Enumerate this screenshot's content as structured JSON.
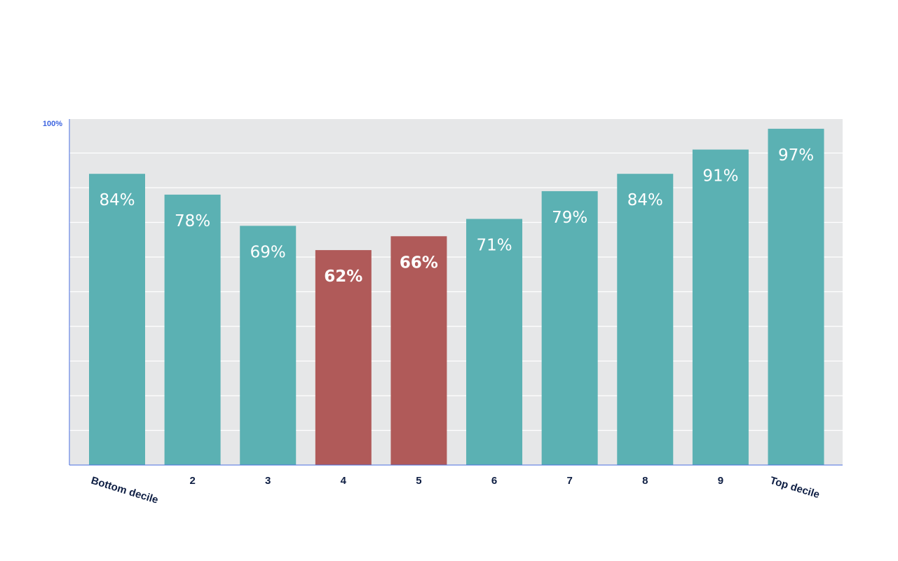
{
  "chart_data": {
    "type": "bar",
    "categories": [
      "Bottom decile",
      "2",
      "3",
      "4",
      "5",
      "6",
      "7",
      "8",
      "9",
      "Top decile"
    ],
    "values": [
      84,
      78,
      69,
      62,
      66,
      71,
      79,
      84,
      91,
      97
    ],
    "value_labels": [
      "84%",
      "78%",
      "69%",
      "62%",
      "66%",
      "71%",
      "79%",
      "84%",
      "91%",
      "97%"
    ],
    "highlight": [
      false,
      false,
      false,
      true,
      true,
      false,
      false,
      false,
      false,
      false
    ],
    "ylim": [
      0,
      100
    ],
    "y_ticks": [
      {
        "value": 100,
        "label": "100%"
      }
    ],
    "grid": true,
    "gridline_count": 10,
    "title": "",
    "xlabel": "",
    "ylabel": ""
  },
  "colors": {
    "plot_background": "#e6e7e8",
    "gridline": "#ffffff",
    "bar": "#5bb1b3",
    "bar_highlight": "#b05a59",
    "axis": "#4a6fe0",
    "y_tick_text": "#3c64e0",
    "x_tick_text": "#0f1f44",
    "bar_label_text": "#ffffff"
  }
}
